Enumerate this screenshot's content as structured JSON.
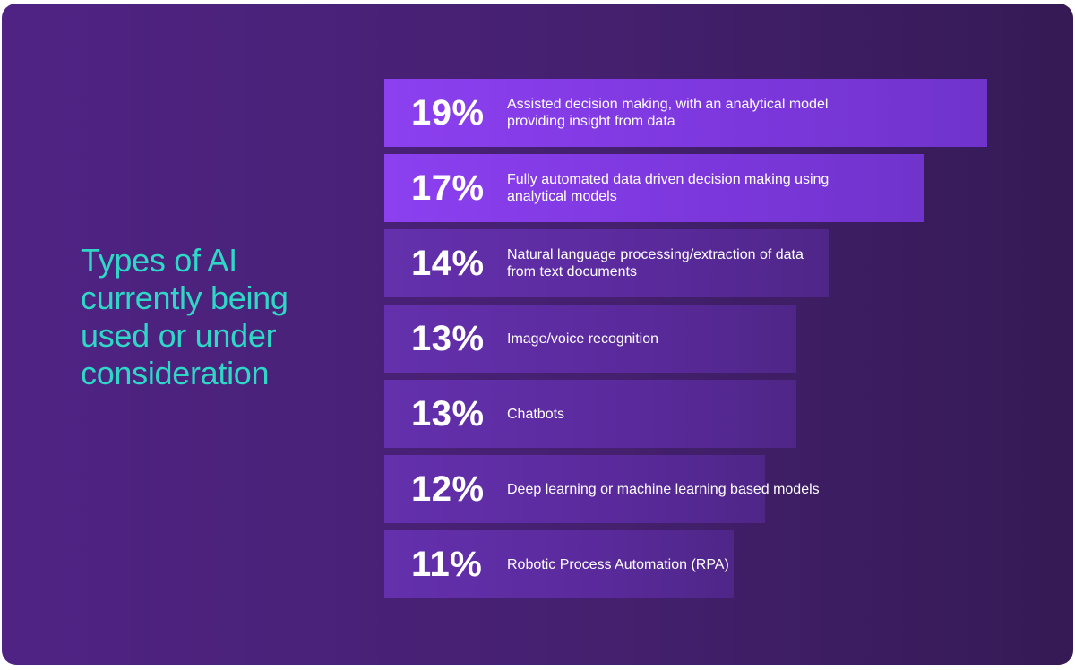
{
  "header": {
    "title": "Types of AI currently being used or under consideration"
  },
  "colors": {
    "title": "#2fd8c6",
    "bar_bright": "#8a3ee8",
    "bar_dim": "#5e2aa0"
  },
  "chart_data": {
    "type": "bar",
    "orientation": "horizontal",
    "title": "Types of AI currently being used or under consideration",
    "categories": [
      "Assisted decision making, with an analytical model providing insight from data",
      "Fully automated data driven decision making using analytical models",
      "Natural language processing/extraction of data from text documents",
      "Image/voice recognition",
      "Chatbots",
      "Deep learning or machine learning based models",
      "Robotic Process Automation (RPA)"
    ],
    "values": [
      19,
      17,
      14,
      13,
      13,
      12,
      11
    ],
    "value_labels": [
      "19%",
      "17%",
      "14%",
      "13%",
      "13%",
      "12%",
      "11%"
    ],
    "xlim": [
      0,
      19
    ],
    "grid": false,
    "legend": "none"
  }
}
